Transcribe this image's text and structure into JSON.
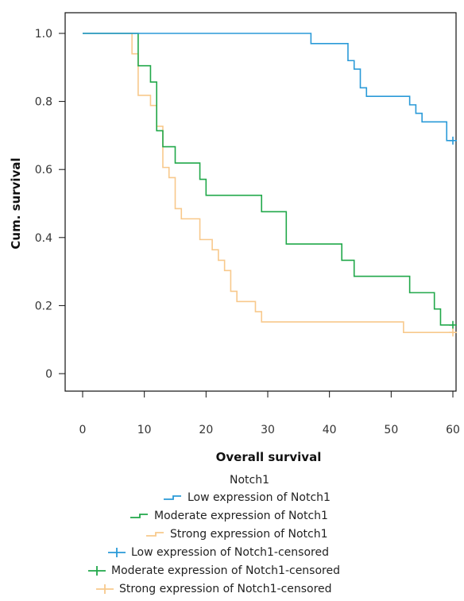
{
  "chart_data": {
    "type": "line",
    "step": true,
    "xlabel": "Overall survival",
    "ylabel": "Cum. survival",
    "xlim": [
      0,
      60
    ],
    "ylim": [
      0,
      1.0
    ],
    "xticks": [
      0,
      10,
      20,
      30,
      40,
      50,
      60
    ],
    "yticks": [
      0,
      0.2,
      0.4,
      0.6,
      0.8,
      1.0
    ],
    "xtick_labels": [
      "0",
      "10",
      "20",
      "30",
      "40",
      "50",
      "60"
    ],
    "ytick_labels": [
      "0",
      "0.2",
      "0.4",
      "0.6",
      "0.8",
      "1.0"
    ],
    "legend_title": "Notch1",
    "legend_position": "bottom",
    "grid": false,
    "series": [
      {
        "name": "Low expression of Notch1",
        "color": "#2a9ad8",
        "x": [
          0,
          37,
          43,
          44,
          45,
          46,
          53,
          54,
          55,
          56,
          59,
          60
        ],
        "y": [
          1.0,
          0.97,
          0.92,
          0.895,
          0.84,
          0.815,
          0.79,
          0.765,
          0.74,
          0.74,
          0.685,
          0.685
        ]
      },
      {
        "name": "Moderate expression of Notch1",
        "color": "#21a84a",
        "x": [
          0,
          9,
          11,
          12,
          13,
          15,
          19,
          20,
          29,
          33,
          42,
          44,
          53,
          57,
          58,
          60
        ],
        "y": [
          1.0,
          0.905,
          0.857,
          0.714,
          0.667,
          0.619,
          0.571,
          0.524,
          0.476,
          0.381,
          0.333,
          0.286,
          0.238,
          0.19,
          0.143,
          0.143
        ]
      },
      {
        "name": "Strong expression of Notch1",
        "color": "#f8c98c",
        "x": [
          0,
          8,
          9,
          11,
          12,
          13,
          14,
          15,
          16,
          19,
          21,
          22,
          23,
          24,
          25,
          28,
          29,
          52,
          60
        ],
        "y": [
          1.0,
          0.94,
          0.818,
          0.788,
          0.727,
          0.606,
          0.576,
          0.485,
          0.455,
          0.394,
          0.364,
          0.333,
          0.303,
          0.242,
          0.212,
          0.182,
          0.152,
          0.121,
          0.121
        ]
      }
    ],
    "censored": [
      {
        "name": "Low expression of Notch1-censored",
        "color": "#2a9ad8",
        "points": [
          [
            60,
            0.685
          ]
        ]
      },
      {
        "name": "Moderate expression of Notch1-censored",
        "color": "#21a84a",
        "points": [
          [
            60,
            0.143
          ]
        ]
      },
      {
        "name": "Strong expression of Notch1-censored",
        "color": "#f8c98c",
        "points": [
          [
            60,
            0.121
          ]
        ]
      }
    ]
  }
}
